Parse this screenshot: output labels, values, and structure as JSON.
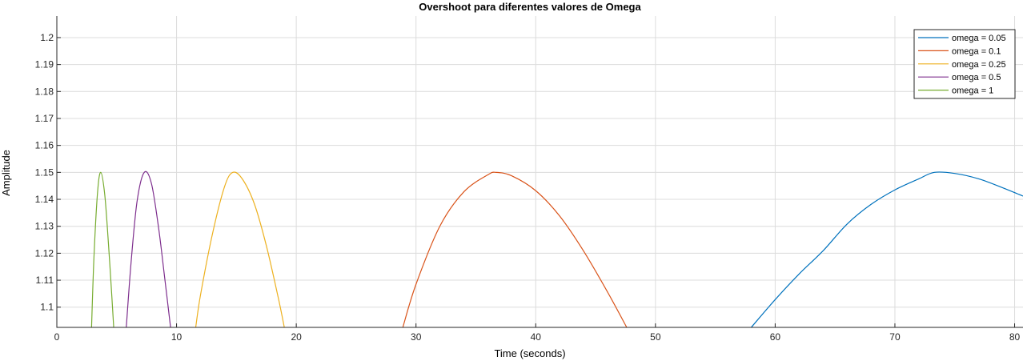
{
  "chart_data": {
    "type": "line",
    "title": "Overshoot para diferentes valores de Omega",
    "xlabel": "Time (seconds)",
    "ylabel": "Amplitude",
    "xlim": [
      0,
      80.7
    ],
    "ylim": [
      1.0925,
      1.208
    ],
    "xticks": [
      0,
      10,
      20,
      30,
      40,
      50,
      60,
      70,
      80
    ],
    "yticks": [
      1.1,
      1.11,
      1.12,
      1.13,
      1.14,
      1.15,
      1.16,
      1.17,
      1.18,
      1.19,
      1.2
    ],
    "grid": true,
    "legend_position": "top-right",
    "series": [
      {
        "name": "omega = 0.05",
        "color": "#0072BD",
        "omega": 0.05,
        "x": [
          58,
          60,
          62,
          64,
          66,
          68,
          70,
          72,
          73.3,
          75,
          77,
          79,
          80.7
        ],
        "y": [
          1.0925,
          1.1028,
          1.1123,
          1.1209,
          1.1308,
          1.1381,
          1.1435,
          1.1476,
          1.15,
          1.1496,
          1.1476,
          1.1443,
          1.1412
        ]
      },
      {
        "name": "omega = 0.1",
        "color": "#D95319",
        "omega": 0.1,
        "x": [
          28.9,
          30,
          32,
          34,
          36,
          36.7,
          38,
          40,
          42,
          44,
          46,
          47.6
        ],
        "y": [
          1.0925,
          1.1085,
          1.1301,
          1.1428,
          1.1491,
          1.15,
          1.1487,
          1.1432,
          1.1338,
          1.1208,
          1.1056,
          1.0925
        ]
      },
      {
        "name": "omega = 0.25",
        "color": "#EDB120",
        "omega": 0.25,
        "x": [
          11.6,
          12,
          13,
          14,
          14.7,
          15.5,
          16.5,
          17.5,
          18.5,
          19.0
        ],
        "y": [
          1.0925,
          1.1045,
          1.1272,
          1.1446,
          1.15,
          1.1475,
          1.1383,
          1.1228,
          1.1034,
          1.0925
        ]
      },
      {
        "name": "omega = 0.5",
        "color": "#7E2F8E",
        "omega": 0.5,
        "x": [
          5.8,
          6.2,
          6.7,
          7.3,
          7.9,
          8.5,
          9.0,
          9.5
        ],
        "y": [
          1.0925,
          1.1165,
          1.1392,
          1.15,
          1.1459,
          1.1294,
          1.1112,
          1.0925
        ]
      },
      {
        "name": "omega = 1",
        "color": "#77AC30",
        "omega": 1,
        "x": [
          2.9,
          3.1,
          3.4,
          3.67,
          4.0,
          4.3,
          4.6,
          4.75
        ],
        "y": [
          1.0925,
          1.1185,
          1.1425,
          1.15,
          1.1418,
          1.1243,
          1.1036,
          1.0925
        ]
      }
    ]
  }
}
